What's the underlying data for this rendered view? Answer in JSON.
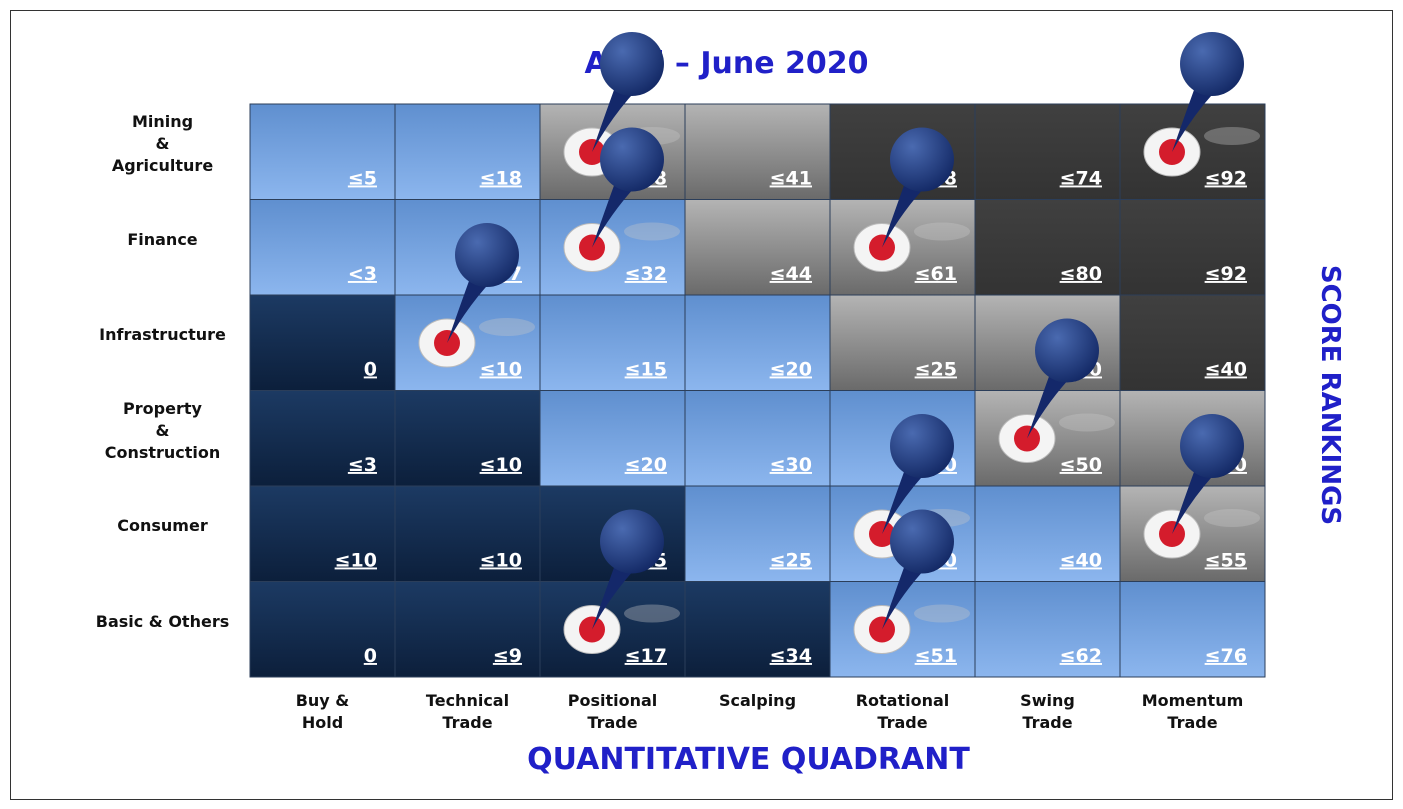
{
  "title": "April – June 2020",
  "row_labels": [
    "Mining\n&\nAgriculture",
    "Finance",
    "Infrastructure",
    "Property\n&\nConstruction",
    "Consumer",
    "Basic & Others"
  ],
  "column_labels": [
    "Buy &\nHold",
    "Technical\nTrade",
    "Positional\nTrade",
    "Scalping",
    "Rotational\nTrade",
    "Swing\nTrade",
    "Momentum\nTrade"
  ],
  "cells": [
    [
      {
        "label": "≤5",
        "shade": "light",
        "pin": false
      },
      {
        "label": "≤18",
        "shade": "light",
        "pin": false
      },
      {
        "label": "≤28",
        "shade": "gray",
        "pin": true
      },
      {
        "label": "≤41",
        "shade": "gray",
        "pin": false
      },
      {
        "label": "≤58",
        "shade": "black",
        "pin": false
      },
      {
        "label": "≤74",
        "shade": "black",
        "pin": false
      },
      {
        "label": "≤92",
        "shade": "black",
        "pin": true
      }
    ],
    [
      {
        "label": "<3",
        "shade": "light",
        "pin": false
      },
      {
        "label": "≤17",
        "shade": "light",
        "pin": false
      },
      {
        "label": "≤32",
        "shade": "light",
        "pin": true
      },
      {
        "label": "≤44",
        "shade": "gray",
        "pin": false
      },
      {
        "label": "≤61",
        "shade": "gray",
        "pin": true
      },
      {
        "label": "≤80",
        "shade": "black",
        "pin": false
      },
      {
        "label": "≤92",
        "shade": "black",
        "pin": false
      }
    ],
    [
      {
        "label": "0",
        "shade": "dark",
        "pin": false
      },
      {
        "label": "≤10",
        "shade": "light",
        "pin": true
      },
      {
        "label": "≤15",
        "shade": "light",
        "pin": false
      },
      {
        "label": "≤20",
        "shade": "light",
        "pin": false
      },
      {
        "label": "≤25",
        "shade": "gray",
        "pin": false
      },
      {
        "label": "≤30",
        "shade": "gray",
        "pin": false
      },
      {
        "label": "≤40",
        "shade": "black",
        "pin": false
      }
    ],
    [
      {
        "label": "≤3",
        "shade": "dark",
        "pin": false
      },
      {
        "label": "≤10",
        "shade": "dark",
        "pin": false
      },
      {
        "label": "≤20",
        "shade": "light",
        "pin": false
      },
      {
        "label": "≤30",
        "shade": "light",
        "pin": false
      },
      {
        "label": "≤40",
        "shade": "light",
        "pin": false
      },
      {
        "label": "≤50",
        "shade": "gray",
        "pin": true
      },
      {
        "label": "≤60",
        "shade": "gray",
        "pin": false
      }
    ],
    [
      {
        "label": "≤10",
        "shade": "dark",
        "pin": false
      },
      {
        "label": "≤10",
        "shade": "dark",
        "pin": false
      },
      {
        "label": "≤15",
        "shade": "dark",
        "pin": false
      },
      {
        "label": "≤25",
        "shade": "light",
        "pin": false
      },
      {
        "label": "≤30",
        "shade": "light",
        "pin": true
      },
      {
        "label": "≤40",
        "shade": "light",
        "pin": false
      },
      {
        "label": "≤55",
        "shade": "gray",
        "pin": true
      }
    ],
    [
      {
        "label": "0",
        "shade": "dark",
        "pin": false
      },
      {
        "label": "≤9",
        "shade": "dark",
        "pin": false
      },
      {
        "label": "≤17",
        "shade": "dark",
        "pin": true
      },
      {
        "label": "≤34",
        "shade": "dark",
        "pin": false
      },
      {
        "label": "≤51",
        "shade": "light",
        "pin": true
      },
      {
        "label": "≤62",
        "shade": "light",
        "pin": false
      },
      {
        "label": "≤76",
        "shade": "light",
        "pin": false
      }
    ]
  ],
  "x_axis_title": "QUANTITATIVE QUADRANT",
  "y_axis_title": "SCORE RANKINGS"
}
